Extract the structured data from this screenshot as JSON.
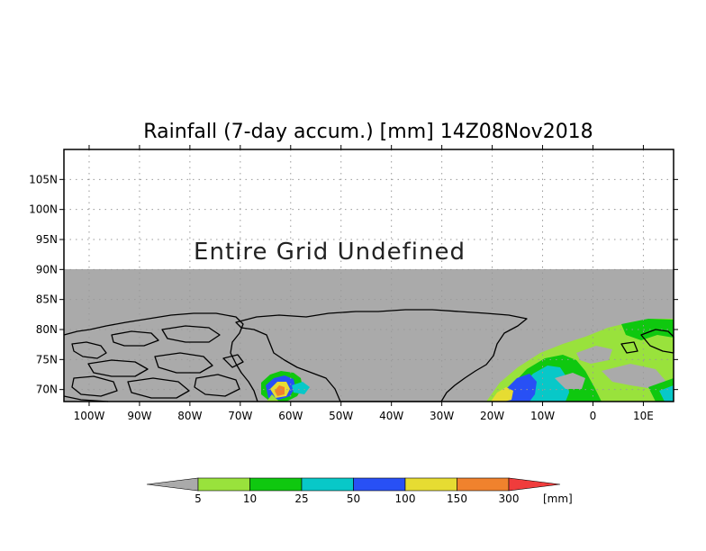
{
  "title": "Rainfall (7-day accum.) [mm] 14Z08Nov2018",
  "undefined_message": "Entire Grid Undefined",
  "map": {
    "lon_range": [
      -105,
      16
    ],
    "lat_range": [
      68,
      110
    ],
    "undefined_region": "lat > 90N",
    "land_color": "#aaaaaa",
    "coastline_color": "#000000"
  },
  "axes": {
    "x_ticks": [
      {
        "value": -100,
        "label": "100W"
      },
      {
        "value": -90,
        "label": "90W"
      },
      {
        "value": -80,
        "label": "80W"
      },
      {
        "value": -70,
        "label": "70W"
      },
      {
        "value": -60,
        "label": "60W"
      },
      {
        "value": -50,
        "label": "50W"
      },
      {
        "value": -40,
        "label": "40W"
      },
      {
        "value": -30,
        "label": "30W"
      },
      {
        "value": -20,
        "label": "20W"
      },
      {
        "value": -10,
        "label": "10W"
      },
      {
        "value": 0,
        "label": "0"
      },
      {
        "value": 10,
        "label": "10E"
      }
    ],
    "y_ticks": [
      {
        "value": 70,
        "label": "70N"
      },
      {
        "value": 75,
        "label": "75N"
      },
      {
        "value": 80,
        "label": "80N"
      },
      {
        "value": 85,
        "label": "85N"
      },
      {
        "value": 90,
        "label": "90N"
      },
      {
        "value": 95,
        "label": "95N"
      },
      {
        "value": 100,
        "label": "100N"
      },
      {
        "value": 105,
        "label": "105N"
      }
    ],
    "grid": true
  },
  "colorbar": {
    "unit": "[mm]",
    "bins": [
      {
        "color": "#aaaaaa"
      },
      {
        "color": "#99e23c"
      },
      {
        "color": "#0fc80f"
      },
      {
        "color": "#08c8c8"
      },
      {
        "color": "#2850f5"
      },
      {
        "color": "#e6dc32"
      },
      {
        "color": "#f0822d"
      },
      {
        "color": "#f03c3c"
      }
    ],
    "labels": [
      "5",
      "10",
      "25",
      "50",
      "100",
      "150",
      "300"
    ]
  },
  "precip_patches": [
    {
      "name": "baffin-bay",
      "level": "multi",
      "colors": [
        "#99e23c",
        "#0fc80f",
        "#08c8c8",
        "#2850f5",
        "#e6dc32",
        "#f0822d"
      ]
    },
    {
      "name": "greenland-sea",
      "level": "multi",
      "colors": [
        "#99e23c",
        "#0fc80f",
        "#08c8c8",
        "#2850f5",
        "#e6dc32"
      ]
    }
  ]
}
